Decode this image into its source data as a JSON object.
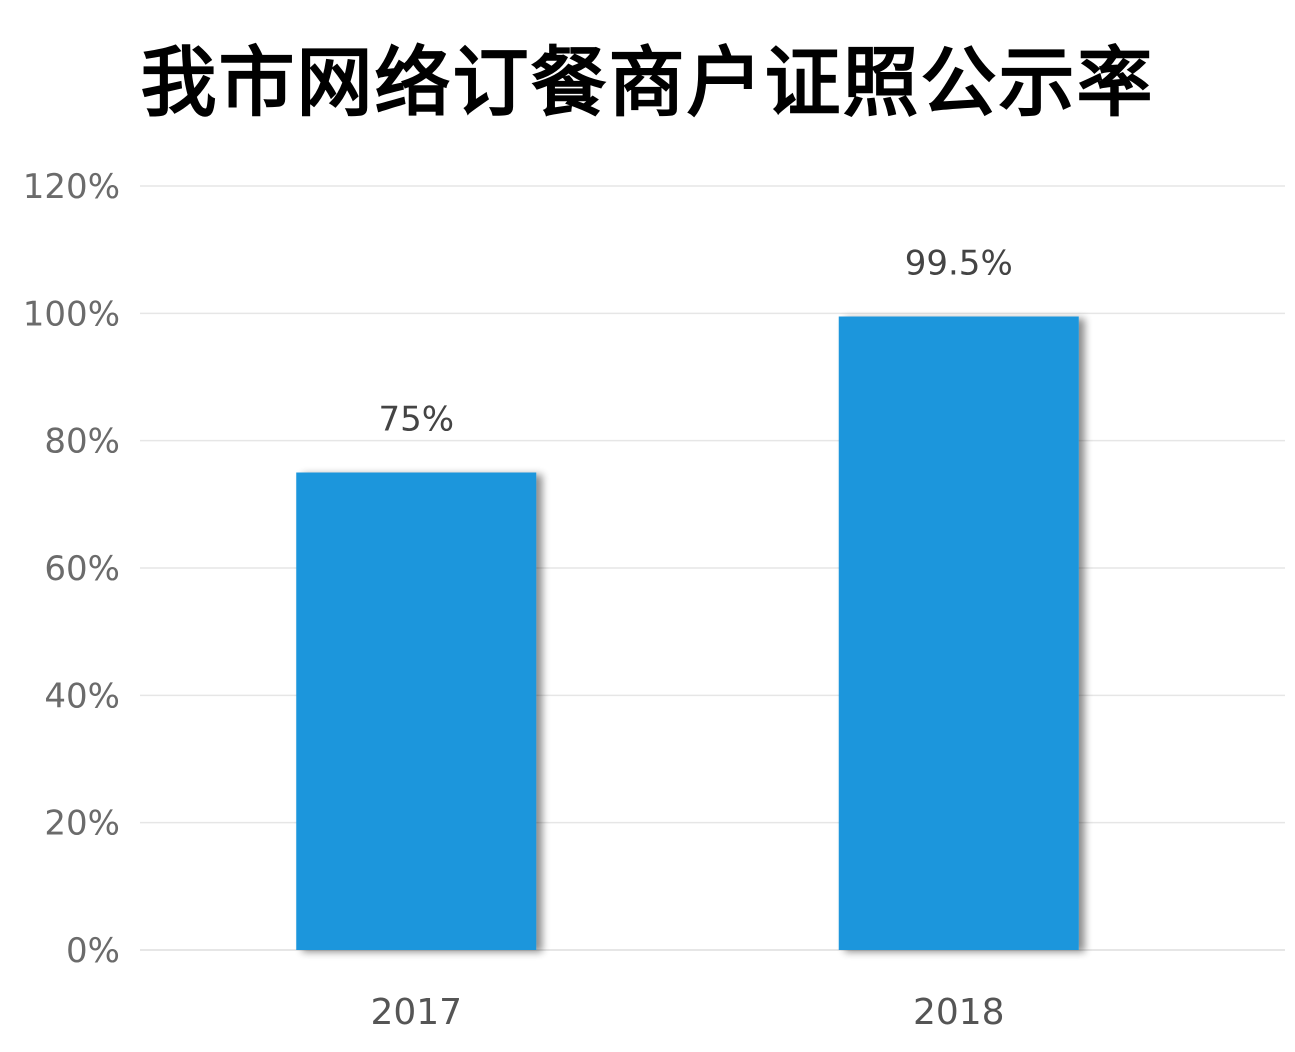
{
  "chart_data": {
    "type": "bar",
    "title": "我市网络订餐商户证照公示率",
    "categories": [
      "2017",
      "2018"
    ],
    "values": [
      75,
      99.5
    ],
    "data_labels": [
      "75%",
      "99.5%"
    ],
    "ylim": [
      0,
      120
    ],
    "yticks": [
      0,
      20,
      40,
      60,
      80,
      100,
      120
    ],
    "ytick_labels": [
      "0%",
      "20%",
      "40%",
      "60%",
      "80%",
      "100%",
      "120%"
    ],
    "xlabel": "",
    "ylabel": "",
    "grid": true,
    "legend": "none",
    "bar_color": "#1a96dc",
    "grid_color": "#e6e6e6"
  }
}
